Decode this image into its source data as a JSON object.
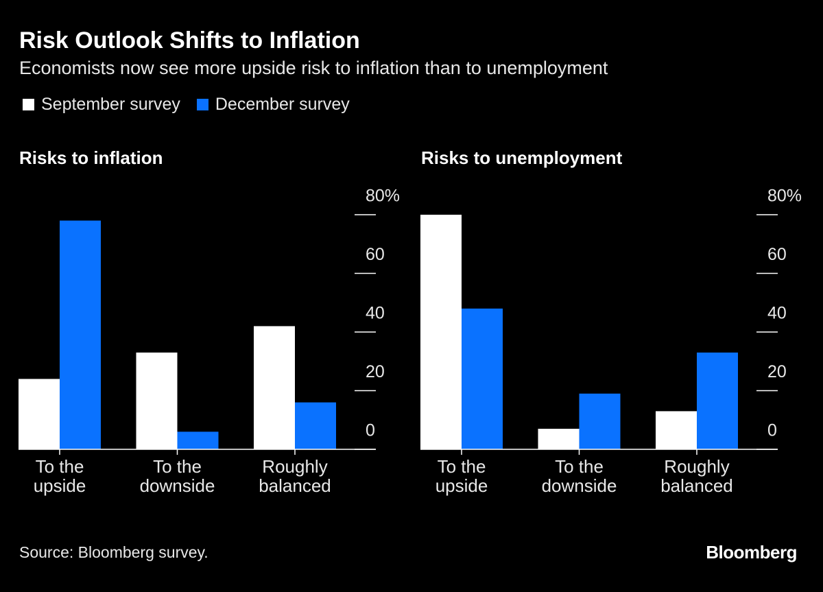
{
  "header": {
    "title": "Risk Outlook Shifts to Inflation",
    "subtitle": "Economists now see more upside risk to inflation than to unemployment"
  },
  "chart_data": [
    {
      "type": "bar",
      "title": "Risks to inflation",
      "categories": [
        "To the upside",
        "To the downside",
        "Roughly balanced"
      ],
      "series": [
        {
          "name": "September survey",
          "color": "#ffffff",
          "values": [
            24,
            33,
            42
          ]
        },
        {
          "name": "December survey",
          "color": "#0a72ff",
          "values": [
            78,
            6,
            16
          ]
        }
      ],
      "ylim": [
        0,
        80
      ],
      "yticks": [
        0,
        20,
        40,
        60,
        {
          "value": 80,
          "label": "80%"
        }
      ],
      "grid": false
    },
    {
      "type": "bar",
      "title": "Risks to unemployment",
      "categories": [
        "To the upside",
        "To the downside",
        "Roughly balanced"
      ],
      "series": [
        {
          "name": "September survey",
          "color": "#ffffff",
          "values": [
            80,
            7,
            13
          ]
        },
        {
          "name": "December survey",
          "color": "#0a72ff",
          "values": [
            48,
            19,
            33
          ]
        }
      ],
      "ylim": [
        0,
        80
      ],
      "yticks": [
        0,
        20,
        40,
        60,
        {
          "value": 80,
          "label": "80%"
        }
      ],
      "grid": false
    }
  ],
  "footer": {
    "source": "Source: Bloomberg survey.",
    "brand": "Bloomberg"
  }
}
